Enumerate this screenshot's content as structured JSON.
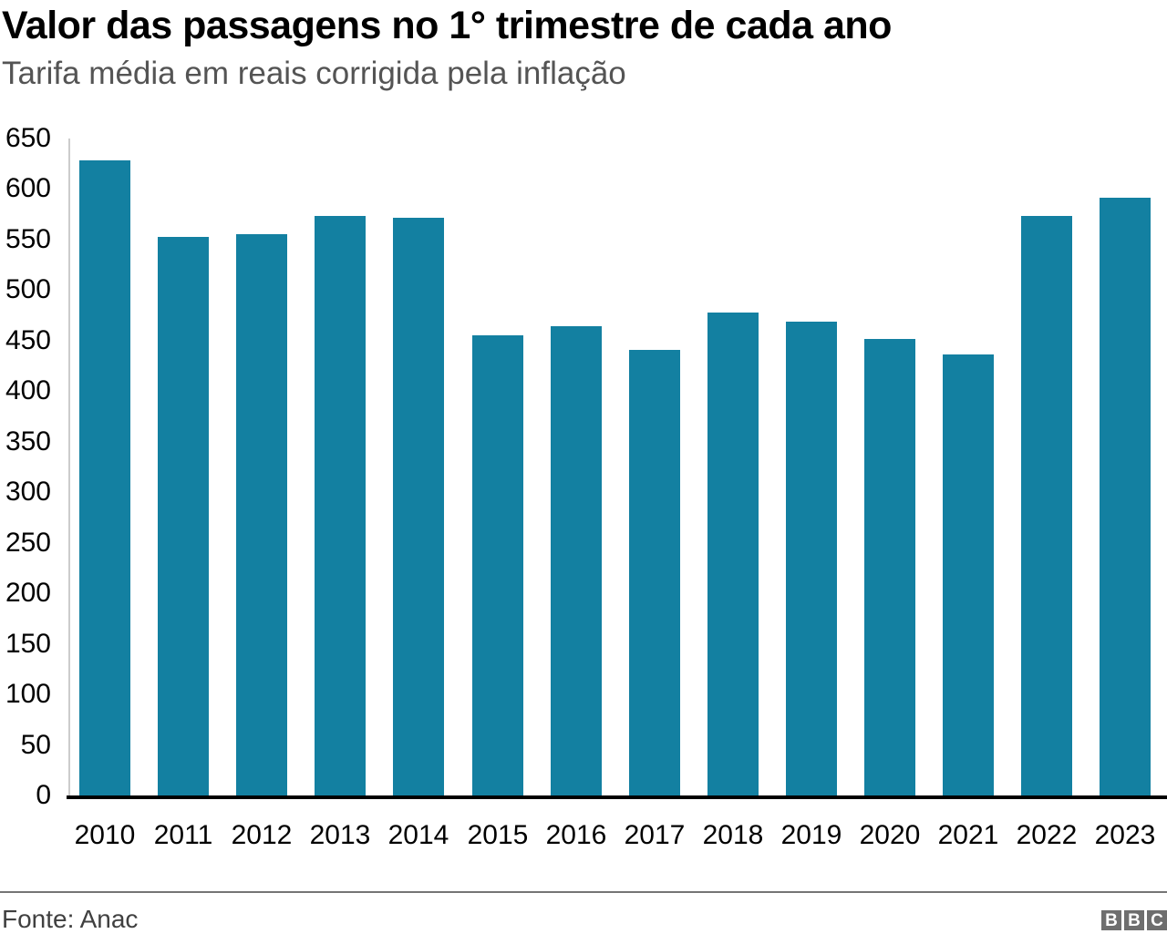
{
  "header": {
    "title": "Valor das passagens no 1° trimestre de cada ano",
    "subtitle": "Tarifa média em reais corrigida pela inflação"
  },
  "footer": {
    "source": "Fonte: Anac",
    "logo_letters": [
      "B",
      "B",
      "C"
    ]
  },
  "colors": {
    "bar": "#1380A1",
    "axis_line": "#cccccc",
    "baseline": "#000000",
    "divider": "#757575",
    "subtitle_text": "#545454",
    "source_text": "#404040",
    "logo_bg": "#6e6e6e"
  },
  "chart_data": {
    "type": "bar",
    "title": "Valor das passagens no 1° trimestre de cada ano",
    "subtitle": "Tarifa média em reais corrigida pela inflação",
    "categories": [
      "2010",
      "2011",
      "2012",
      "2013",
      "2014",
      "2015",
      "2016",
      "2017",
      "2018",
      "2019",
      "2020",
      "2021",
      "2022",
      "2023"
    ],
    "values": [
      628,
      553,
      555,
      573,
      572,
      455,
      464,
      441,
      478,
      469,
      452,
      436,
      573,
      591
    ],
    "xlabel": "",
    "ylabel": "",
    "ylim": [
      0,
      650
    ],
    "ytick_step": 50,
    "yticks": [
      0,
      50,
      100,
      150,
      200,
      250,
      300,
      350,
      400,
      450,
      500,
      550,
      600,
      650
    ],
    "grid": false,
    "legend": "none",
    "bar_color": "#1380A1",
    "source": "Fonte: Anac"
  }
}
